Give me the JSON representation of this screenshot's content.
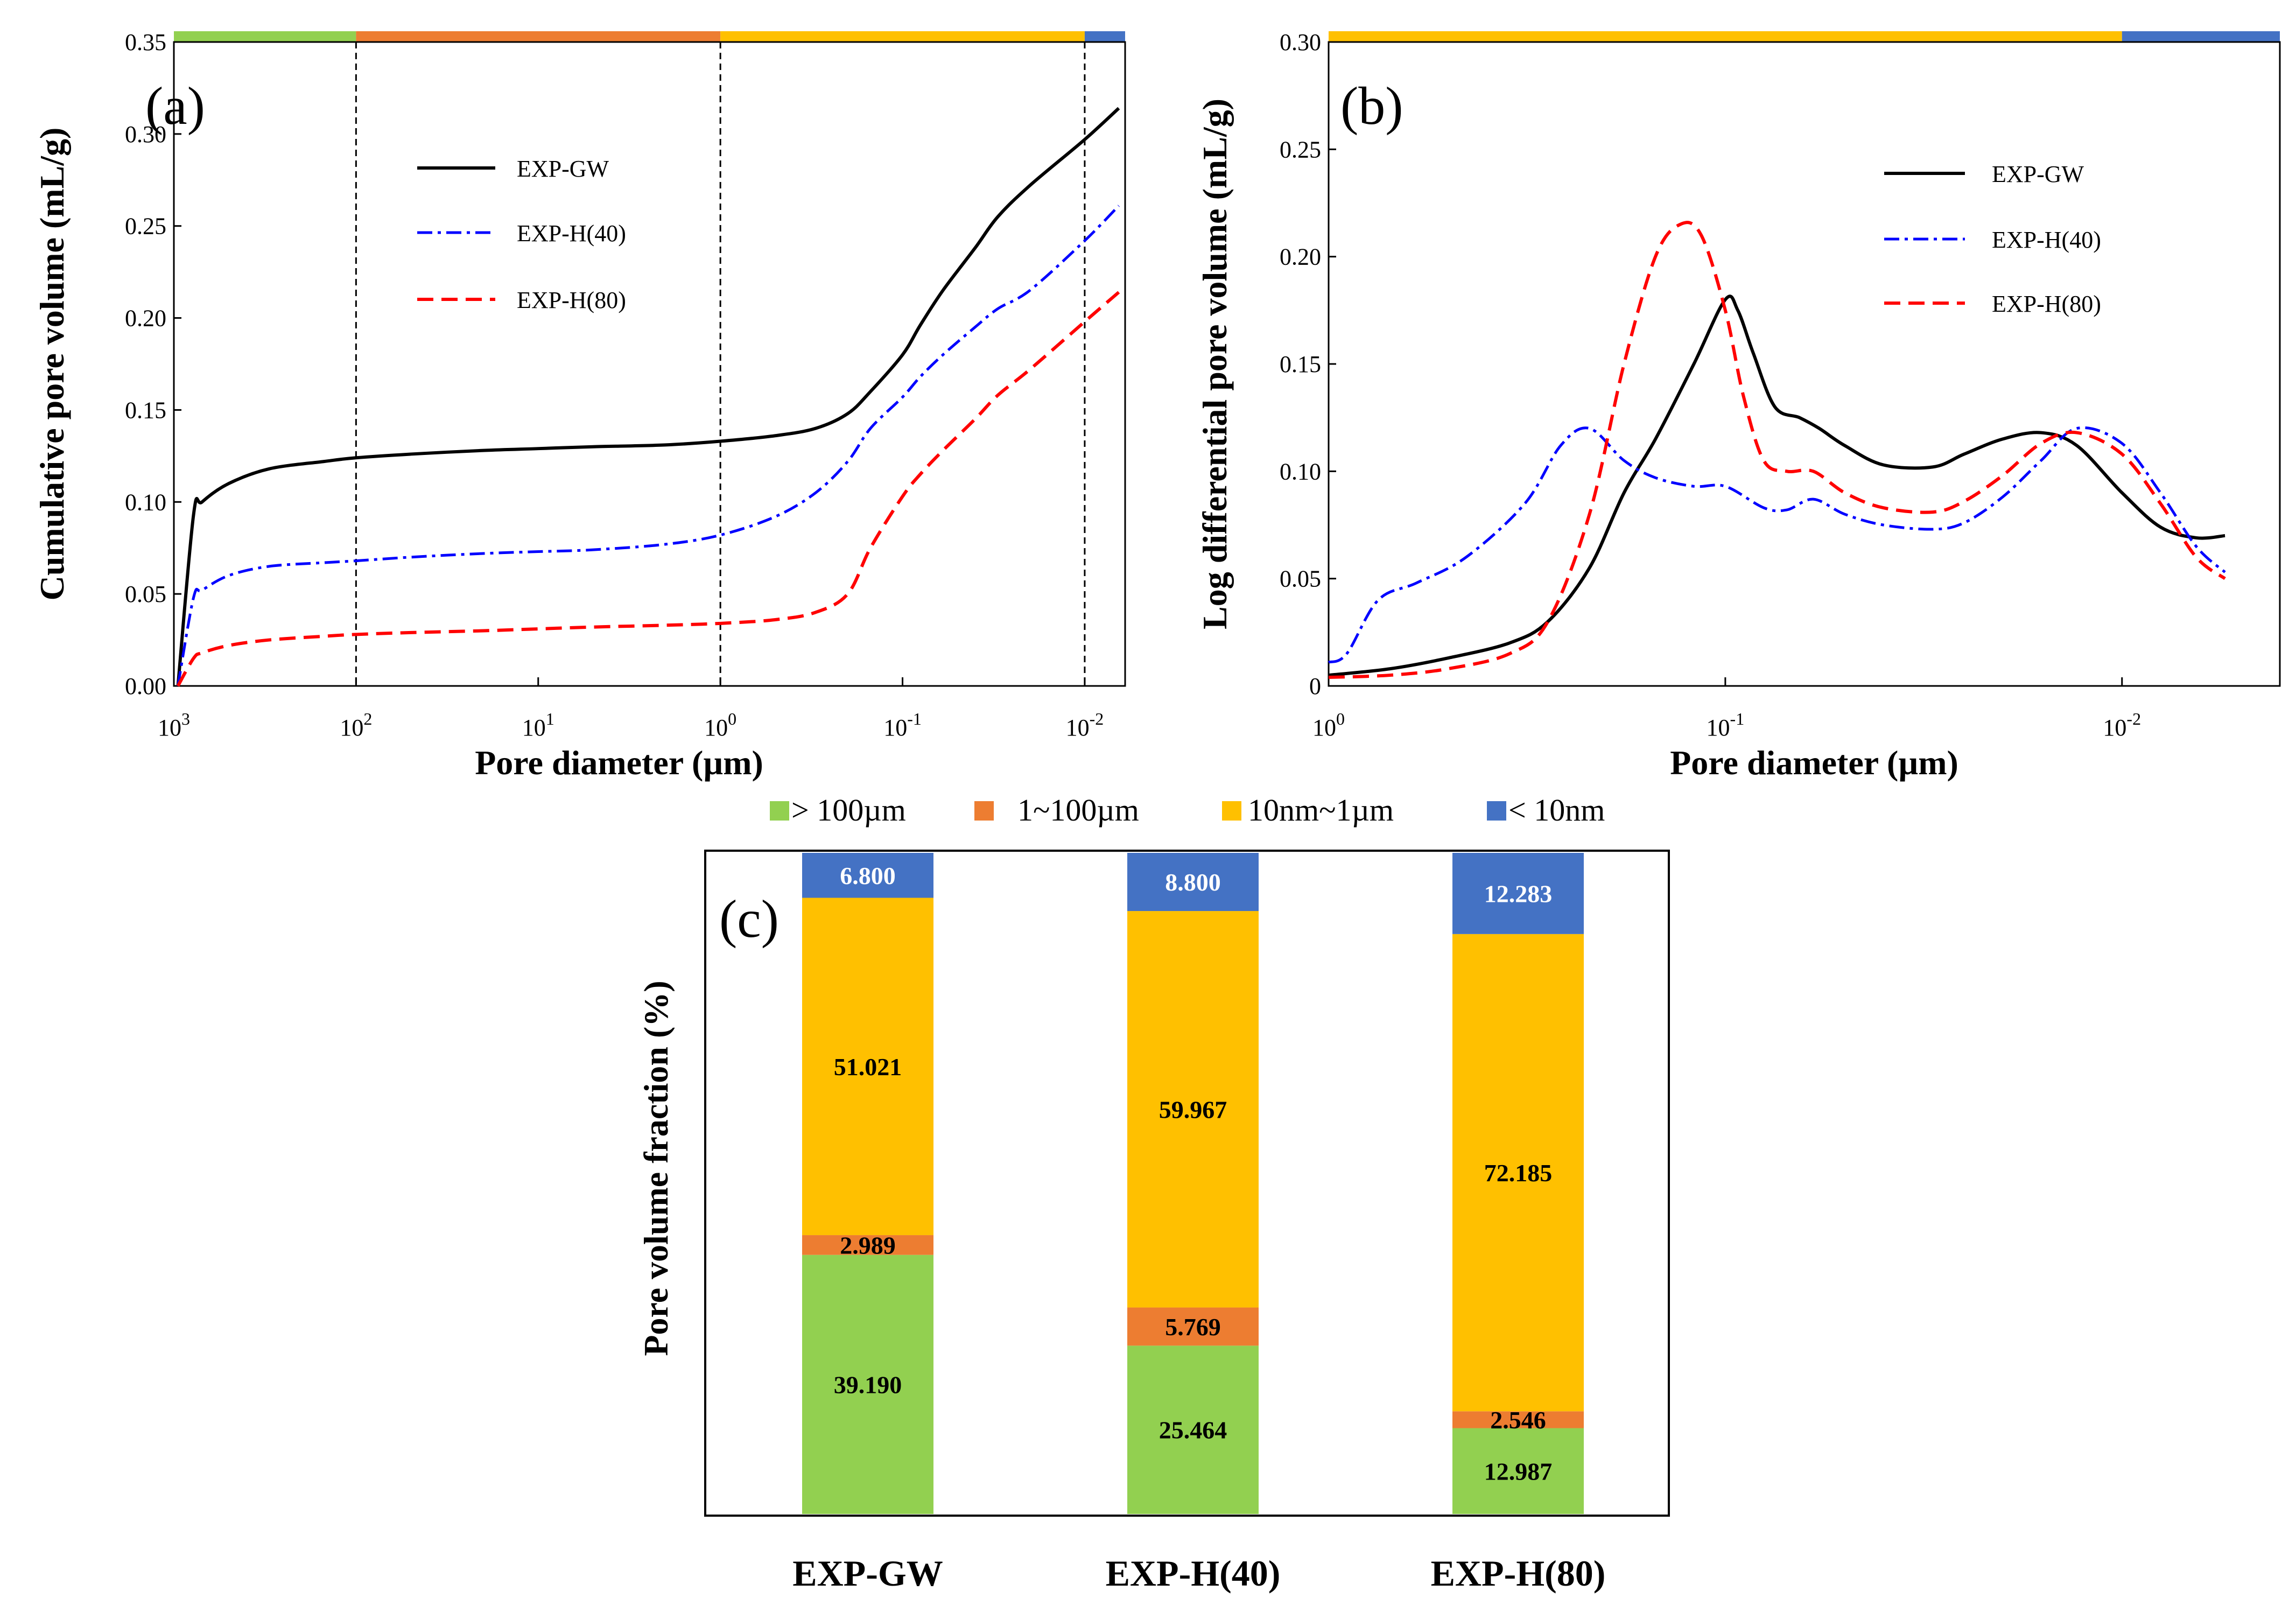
{
  "colors": {
    "green": "#92D050",
    "orange": "#ED7D31",
    "yellow": "#FFC000",
    "blue": "#4472C4",
    "gw": "#000000",
    "h40": "#0000FF",
    "h80": "#FF0000"
  },
  "chart_data": [
    {
      "id": "a",
      "type": "line",
      "panel_label": "(a)",
      "xlabel": "Pore diameter (µm)",
      "ylabel": "Cumulative pore volume (mL/g)",
      "xscale": "log-reversed",
      "xlim": [
        1000,
        0.006
      ],
      "ylim": [
        0,
        0.35
      ],
      "yticks": [
        "0.00",
        "0.05",
        "0.10",
        "0.15",
        "0.20",
        "0.25",
        "0.30",
        "0.35"
      ],
      "xticks": [
        {
          "base": "10",
          "exp": "3"
        },
        {
          "base": "10",
          "exp": "2"
        },
        {
          "base": "10",
          "exp": "1"
        },
        {
          "base": "10",
          "exp": "0"
        },
        {
          "base": "10",
          "exp": "-1"
        },
        {
          "base": "10",
          "exp": "-2"
        }
      ],
      "dividers": [
        100,
        1,
        0.01
      ],
      "range_bar": [
        {
          "from": 1000,
          "to": 100,
          "color": "green"
        },
        {
          "from": 100,
          "to": 1,
          "color": "orange"
        },
        {
          "from": 1,
          "to": 0.01,
          "color": "yellow"
        },
        {
          "from": 0.01,
          "to": 0.006,
          "color": "blue"
        }
      ],
      "legend": [
        "EXP-GW",
        "EXP-H(40)",
        "EXP-H(80)"
      ],
      "series": [
        {
          "name": "EXP-GW",
          "style": "solid",
          "color": "gw",
          "x": [
            950,
            780,
            700,
            500,
            300,
            150,
            100,
            50,
            20,
            10,
            5,
            2,
            1,
            0.5,
            0.3,
            0.2,
            0.15,
            0.1,
            0.08,
            0.06,
            0.04,
            0.03,
            0.02,
            0.01,
            0.0065
          ],
          "y": [
            0.0,
            0.093,
            0.1,
            0.11,
            0.118,
            0.122,
            0.124,
            0.126,
            0.128,
            0.129,
            0.13,
            0.131,
            0.133,
            0.136,
            0.14,
            0.148,
            0.16,
            0.18,
            0.196,
            0.215,
            0.238,
            0.255,
            0.272,
            0.297,
            0.314
          ]
        },
        {
          "name": "EXP-H(40)",
          "style": "dashdot",
          "color": "h40",
          "x": [
            950,
            780,
            700,
            500,
            300,
            150,
            100,
            50,
            20,
            10,
            5,
            2,
            1,
            0.5,
            0.3,
            0.2,
            0.15,
            0.1,
            0.08,
            0.06,
            0.04,
            0.03,
            0.02,
            0.01,
            0.0065
          ],
          "y": [
            0.0,
            0.048,
            0.052,
            0.06,
            0.065,
            0.067,
            0.068,
            0.07,
            0.072,
            0.073,
            0.074,
            0.077,
            0.082,
            0.092,
            0.105,
            0.122,
            0.14,
            0.157,
            0.168,
            0.18,
            0.195,
            0.205,
            0.215,
            0.242,
            0.261
          ]
        },
        {
          "name": "EXP-H(80)",
          "style": "dashed",
          "color": "h80",
          "x": [
            950,
            780,
            700,
            500,
            300,
            150,
            100,
            50,
            20,
            10,
            5,
            2,
            1,
            0.5,
            0.3,
            0.2,
            0.15,
            0.1,
            0.08,
            0.06,
            0.04,
            0.03,
            0.02,
            0.01,
            0.0065
          ],
          "y": [
            0.0,
            0.015,
            0.018,
            0.022,
            0.025,
            0.027,
            0.028,
            0.029,
            0.03,
            0.031,
            0.032,
            0.033,
            0.034,
            0.036,
            0.04,
            0.05,
            0.075,
            0.103,
            0.115,
            0.128,
            0.145,
            0.158,
            0.172,
            0.198,
            0.214
          ]
        }
      ]
    },
    {
      "id": "b",
      "type": "line",
      "panel_label": "(b)",
      "xlabel": "Pore diameter (µm)",
      "ylabel": "Log differential pore volume (mL/g)",
      "xscale": "log-reversed",
      "xlim": [
        1,
        0.004
      ],
      "ylim": [
        0,
        0.3
      ],
      "yticks": [
        "0",
        "0.05",
        "0.10",
        "0.15",
        "0.20",
        "0.25",
        "0.30"
      ],
      "xticks": [
        {
          "base": "10",
          "exp": "0"
        },
        {
          "base": "10",
          "exp": "-1"
        },
        {
          "base": "10",
          "exp": "-2"
        }
      ],
      "range_bar": [
        {
          "from": 1,
          "to": 0.01,
          "color": "yellow"
        },
        {
          "from": 0.01,
          "to": 0.004,
          "color": "blue"
        }
      ],
      "legend": [
        "EXP-GW",
        "EXP-H(40)",
        "EXP-H(80)"
      ],
      "series": [
        {
          "name": "EXP-GW",
          "style": "solid",
          "color": "gw",
          "x": [
            1,
            0.7,
            0.5,
            0.35,
            0.28,
            0.22,
            0.18,
            0.15,
            0.12,
            0.1,
            0.093,
            0.085,
            0.075,
            0.065,
            0.058,
            0.05,
            0.04,
            0.03,
            0.025,
            0.02,
            0.016,
            0.013,
            0.01,
            0.008,
            0.0065,
            0.0055
          ],
          "y": [
            0.005,
            0.008,
            0.013,
            0.02,
            0.03,
            0.055,
            0.09,
            0.115,
            0.15,
            0.18,
            0.175,
            0.155,
            0.13,
            0.125,
            0.12,
            0.112,
            0.103,
            0.102,
            0.108,
            0.115,
            0.118,
            0.112,
            0.09,
            0.074,
            0.069,
            0.07
          ]
        },
        {
          "name": "EXP-H(40)",
          "style": "dashdot",
          "color": "h40",
          "x": [
            1,
            0.9,
            0.75,
            0.6,
            0.45,
            0.32,
            0.26,
            0.22,
            0.18,
            0.15,
            0.12,
            0.1,
            0.08,
            0.07,
            0.06,
            0.05,
            0.04,
            0.03,
            0.025,
            0.02,
            0.016,
            0.013,
            0.01,
            0.008,
            0.0065,
            0.0055
          ],
          "y": [
            0.011,
            0.015,
            0.04,
            0.048,
            0.06,
            0.085,
            0.112,
            0.12,
            0.105,
            0.097,
            0.093,
            0.093,
            0.083,
            0.082,
            0.087,
            0.08,
            0.075,
            0.073,
            0.076,
            0.088,
            0.105,
            0.12,
            0.113,
            0.09,
            0.065,
            0.053
          ]
        },
        {
          "name": "EXP-H(80)",
          "style": "dashed",
          "color": "h80",
          "x": [
            1,
            0.7,
            0.5,
            0.35,
            0.28,
            0.22,
            0.18,
            0.15,
            0.13,
            0.115,
            0.1,
            0.09,
            0.08,
            0.07,
            0.06,
            0.05,
            0.04,
            0.03,
            0.025,
            0.02,
            0.016,
            0.013,
            0.01,
            0.008,
            0.0065,
            0.0055
          ],
          "y": [
            0.004,
            0.005,
            0.008,
            0.015,
            0.03,
            0.08,
            0.15,
            0.2,
            0.215,
            0.21,
            0.175,
            0.135,
            0.105,
            0.1,
            0.1,
            0.09,
            0.083,
            0.081,
            0.086,
            0.098,
            0.113,
            0.118,
            0.108,
            0.085,
            0.06,
            0.05
          ]
        }
      ]
    },
    {
      "id": "c",
      "type": "bar",
      "stacked": true,
      "panel_label": "(c)",
      "ylabel": "Pore volume fraction (%)",
      "ylim": [
        0,
        100
      ],
      "categories": [
        "EXP-GW",
        "EXP-H(40)",
        "EXP-H(80)"
      ],
      "series": [
        {
          "name": "> 100µm",
          "color": "green",
          "values": [
            39.19,
            25.464,
            12.987
          ],
          "labels": [
            "39.190",
            "25.464",
            "12.987"
          ],
          "label_color": "#000000"
        },
        {
          "name": "1~100µm",
          "color": "orange",
          "values": [
            2.989,
            5.769,
            2.546
          ],
          "labels": [
            "2.989",
            "5.769",
            "2.546"
          ],
          "label_color": "#000000"
        },
        {
          "name": "10nm~1µm",
          "color": "yellow",
          "values": [
            51.021,
            59.967,
            72.185
          ],
          "labels": [
            "51.021",
            "59.967",
            "72.185"
          ],
          "label_color": "#000000"
        },
        {
          "name": "< 10nm",
          "color": "blue",
          "values": [
            6.8,
            8.8,
            12.283
          ],
          "labels": [
            "6.800",
            "8.800",
            "12.283"
          ],
          "label_color": "#FFFFFF"
        }
      ]
    }
  ]
}
